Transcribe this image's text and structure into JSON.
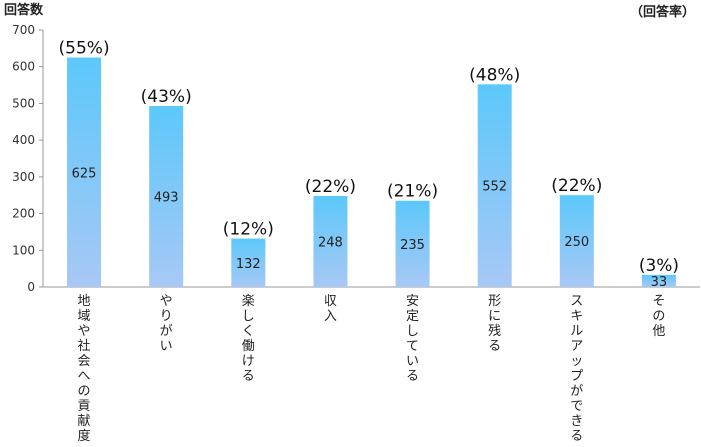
{
  "chart_data": {
    "type": "bar",
    "ylabel": "回答数",
    "right_label": "（回答率）",
    "ylim": [
      0,
      700
    ],
    "yticks": [
      0,
      100,
      200,
      300,
      400,
      500,
      600,
      700
    ],
    "grid": false,
    "categories": [
      "地域や社会への貢献度",
      "やりがい",
      "楽しく働ける",
      "収入",
      "安定している",
      "形に残る",
      "スキルアップができる",
      "その他"
    ],
    "values": [
      625,
      493,
      132,
      248,
      235,
      552,
      250,
      33
    ],
    "rate_labels": [
      "(55%)",
      "(43%)",
      "(12%)",
      "(22%)",
      "(21%)",
      "(48%)",
      "(22%)",
      "(3%)"
    ],
    "colors": {
      "bar_top": "#5cc8fa",
      "bar_bottom": "#a8c8f5",
      "axis": "#999999"
    }
  }
}
